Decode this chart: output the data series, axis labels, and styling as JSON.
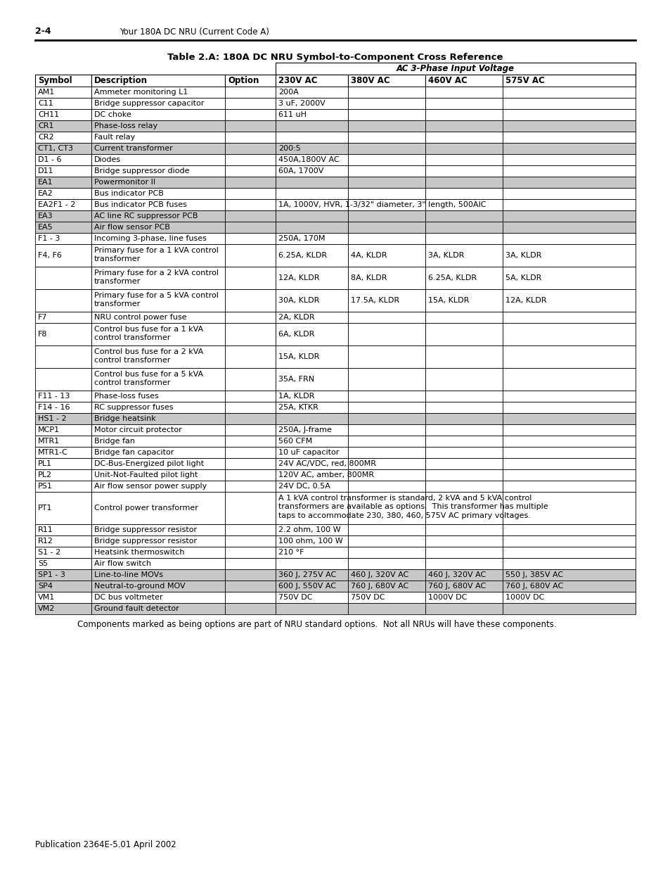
{
  "page_header_left": "2-4",
  "page_header_right": "Your 180A DC NRU (Current Code A)",
  "table_title": "Table 2.A: 180A DC NRU Symbol-to-Component Cross Reference",
  "ac_header": "AC 3-Phase Input Voltage",
  "col_headers": [
    "Symbol",
    "Description",
    "Option",
    "230V AC",
    "380V AC",
    "460V AC",
    "575V AC"
  ],
  "footer_note": "Components marked as being options are part of NRU standard options.  Not all NRUs will have these components.",
  "page_footer": "Publication 2364E-5.01 April 2002",
  "bg_gray": "#C8C8C8",
  "bg_white": "#FFFFFF",
  "rows": [
    {
      "symbol": "AM1",
      "description": "Ammeter monitoring L1",
      "option": "",
      "v230": "200A",
      "v380": "",
      "v460": "",
      "v575": "",
      "gray": false
    },
    {
      "symbol": "C11",
      "description": "Bridge suppressor capacitor",
      "option": "",
      "v230": "3 uF, 2000V",
      "v380": "",
      "v460": "",
      "v575": "",
      "gray": false
    },
    {
      "symbol": "CH11",
      "description": "DC choke",
      "option": "",
      "v230": "611 uH",
      "v380": "",
      "v460": "",
      "v575": "",
      "gray": false
    },
    {
      "symbol": "CR1",
      "description": "Phase-loss relay",
      "option": "",
      "v230": "",
      "v380": "",
      "v460": "",
      "v575": "",
      "gray": true
    },
    {
      "symbol": "CR2",
      "description": "Fault relay",
      "option": "",
      "v230": "",
      "v380": "",
      "v460": "",
      "v575": "",
      "gray": false
    },
    {
      "symbol": "CT1, CT3",
      "description": "Current transformer",
      "option": "",
      "v230": "200:5",
      "v380": "",
      "v460": "",
      "v575": "",
      "gray": true
    },
    {
      "symbol": "D1 - 6",
      "description": "Diodes",
      "option": "",
      "v230": "450A,1800V AC",
      "v380": "",
      "v460": "",
      "v575": "",
      "gray": false
    },
    {
      "symbol": "D11",
      "description": "Bridge suppressor diode",
      "option": "",
      "v230": "60A, 1700V",
      "v380": "",
      "v460": "",
      "v575": "",
      "gray": false
    },
    {
      "symbol": "EA1",
      "description": "Powermonitor II",
      "option": "",
      "v230": "",
      "v380": "",
      "v460": "",
      "v575": "",
      "gray": true
    },
    {
      "symbol": "EA2",
      "description": "Bus indicator PCB",
      "option": "",
      "v230": "",
      "v380": "",
      "v460": "",
      "v575": "",
      "gray": false
    },
    {
      "symbol": "EA2F1 - 2",
      "description": "Bus indicator PCB fuses",
      "option": "",
      "v230": "1A, 1000V, HVR, 1-3/32\" diameter, 3\" length, 500AIC",
      "v380": "",
      "v460": "",
      "v575": "",
      "gray": false
    },
    {
      "symbol": "EA3",
      "description": "AC line RC suppressor PCB",
      "option": "",
      "v230": "",
      "v380": "",
      "v460": "",
      "v575": "",
      "gray": true
    },
    {
      "symbol": "EA5",
      "description": "Air flow sensor PCB",
      "option": "",
      "v230": "",
      "v380": "",
      "v460": "",
      "v575": "",
      "gray": true
    },
    {
      "symbol": "F1 - 3",
      "description": "Incoming 3-phase, line fuses",
      "option": "",
      "v230": "250A, 170M",
      "v380": "",
      "v460": "",
      "v575": "",
      "gray": false
    },
    {
      "symbol": "F4, F6",
      "description": "Primary fuse for a 1 kVA control\ntransformer",
      "option": "",
      "v230": "6.25A, KLDR",
      "v380": "4A, KLDR",
      "v460": "3A, KLDR",
      "v575": "3A, KLDR",
      "gray": false
    },
    {
      "symbol": "",
      "description": "Primary fuse for a 2 kVA control\ntransformer",
      "option": "",
      "v230": "12A, KLDR",
      "v380": "8A, KLDR",
      "v460": "6.25A, KLDR",
      "v575": "5A, KLDR",
      "gray": false
    },
    {
      "symbol": "",
      "description": "Primary fuse for a 5 kVA control\ntransformer",
      "option": "",
      "v230": "30A, KLDR",
      "v380": "17.5A, KLDR",
      "v460": "15A, KLDR",
      "v575": "12A, KLDR",
      "gray": false
    },
    {
      "symbol": "F7",
      "description": "NRU control power fuse",
      "option": "",
      "v230": "2A, KLDR",
      "v380": "",
      "v460": "",
      "v575": "",
      "gray": false
    },
    {
      "symbol": "F8",
      "description": "Control bus fuse for a 1 kVA\ncontrol transformer",
      "option": "",
      "v230": "6A, KLDR",
      "v380": "",
      "v460": "",
      "v575": "",
      "gray": false
    },
    {
      "symbol": "",
      "description": "Control bus fuse for a 2 kVA\ncontrol transformer",
      "option": "",
      "v230": "15A, KLDR",
      "v380": "",
      "v460": "",
      "v575": "",
      "gray": false
    },
    {
      "symbol": "",
      "description": "Control bus fuse for a 5 kVA\ncontrol transformer",
      "option": "",
      "v230": "35A, FRN",
      "v380": "",
      "v460": "",
      "v575": "",
      "gray": false
    },
    {
      "symbol": "F11 - 13",
      "description": "Phase-loss fuses",
      "option": "",
      "v230": "1A, KLDR",
      "v380": "",
      "v460": "",
      "v575": "",
      "gray": false
    },
    {
      "symbol": "F14 - 16",
      "description": "RC suppressor fuses",
      "option": "",
      "v230": "25A, KTKR",
      "v380": "",
      "v460": "",
      "v575": "",
      "gray": false
    },
    {
      "symbol": "HS1 - 2",
      "description": "Bridge heatsink",
      "option": "",
      "v230": "",
      "v380": "",
      "v460": "",
      "v575": "",
      "gray": true
    },
    {
      "symbol": "MCP1",
      "description": "Motor circuit protector",
      "option": "",
      "v230": "250A, J-frame",
      "v380": "",
      "v460": "",
      "v575": "",
      "gray": false
    },
    {
      "symbol": "MTR1",
      "description": "Bridge fan",
      "option": "",
      "v230": "560 CFM",
      "v380": "",
      "v460": "",
      "v575": "",
      "gray": false
    },
    {
      "symbol": "MTR1-C",
      "description": "Bridge fan capacitor",
      "option": "",
      "v230": "10 uF capacitor",
      "v380": "",
      "v460": "",
      "v575": "",
      "gray": false
    },
    {
      "symbol": "PL1",
      "description": "DC-Bus-Energized pilot light",
      "option": "",
      "v230": "24V AC/VDC, red, 800MR",
      "v380": "",
      "v460": "",
      "v575": "",
      "gray": false
    },
    {
      "symbol": "PL2",
      "description": "Unit-Not-Faulted pilot light",
      "option": "",
      "v230": "120V AC, amber, 800MR",
      "v380": "",
      "v460": "",
      "v575": "",
      "gray": false
    },
    {
      "symbol": "PS1",
      "description": "Air flow sensor power supply",
      "option": "",
      "v230": "24V DC, 0.5A",
      "v380": "",
      "v460": "",
      "v575": "",
      "gray": false
    },
    {
      "symbol": "PT1",
      "description": "Control power transformer",
      "option": "",
      "v230": "A 1 kVA control transformer is standard, 2 kVA and 5 kVA control\ntransformers are available as options.  This transformer has multiple\ntaps to accommodate 230, 380, 460, 575V AC primary voltages.",
      "v380": "",
      "v460": "",
      "v575": "",
      "gray": false
    },
    {
      "symbol": "R11",
      "description": "Bridge suppressor resistor",
      "option": "",
      "v230": "2.2 ohm, 100 W",
      "v380": "",
      "v460": "",
      "v575": "",
      "gray": false
    },
    {
      "symbol": "R12",
      "description": "Bridge suppressor resistor",
      "option": "",
      "v230": "100 ohm, 100 W",
      "v380": "",
      "v460": "",
      "v575": "",
      "gray": false
    },
    {
      "symbol": "S1 - 2",
      "description": "Heatsink thermoswitch",
      "option": "",
      "v230": "210 °F",
      "v380": "",
      "v460": "",
      "v575": "",
      "gray": false
    },
    {
      "symbol": "S5",
      "description": "Air flow switch",
      "option": "",
      "v230": "",
      "v380": "",
      "v460": "",
      "v575": "",
      "gray": false
    },
    {
      "symbol": "SP1 - 3",
      "description": "Line-to-line MOVs",
      "option": "",
      "v230": "360 J, 275V AC",
      "v380": "460 J, 320V AC",
      "v460": "460 J, 320V AC",
      "v575": "550 J, 385V AC",
      "gray": true
    },
    {
      "symbol": "SP4",
      "description": "Neutral-to-ground MOV",
      "option": "",
      "v230": "600 J, 550V AC",
      "v380": "760 J, 680V AC",
      "v460": "760 J, 680V AC",
      "v575": "760 J, 680V AC",
      "gray": true
    },
    {
      "symbol": "VM1",
      "description": "DC bus voltmeter",
      "option": "",
      "v230": "750V DC",
      "v380": "750V DC",
      "v460": "1000V DC",
      "v575": "1000V DC",
      "gray": false
    },
    {
      "symbol": "VM2",
      "description": "Ground fault detector",
      "option": "",
      "v230": "",
      "v380": "",
      "v460": "",
      "v575": "",
      "gray": true
    }
  ]
}
